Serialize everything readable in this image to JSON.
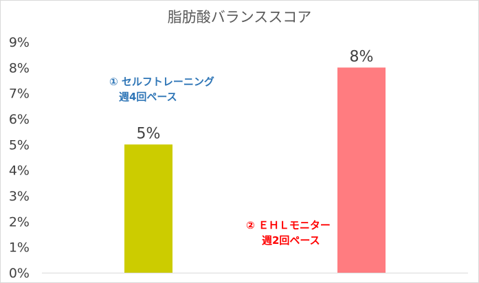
{
  "chart_data": {
    "type": "bar",
    "title": "脂肪酸バランススコア",
    "categories": [
      "",
      ""
    ],
    "values": [
      5,
      8
    ],
    "value_labels": [
      "5%",
      "8%"
    ],
    "bar_colors": [
      "#cccc00",
      "#ff7c80"
    ],
    "ylim": [
      0,
      9
    ],
    "yticks": [
      0,
      1,
      2,
      3,
      4,
      5,
      6,
      7,
      8,
      9
    ],
    "ytick_labels": [
      "0%",
      "1%",
      "2%",
      "3%",
      "4%",
      "5%",
      "6%",
      "7%",
      "8%",
      "9%"
    ],
    "xlabel": "",
    "ylabel": "",
    "grid": false,
    "annotations": [
      {
        "line1": "① セルフトレーニング",
        "line2": "週4回ペース",
        "color": "#2e75b6"
      },
      {
        "line1": "② ＥＨＬモニター",
        "line2": "週2回ペース",
        "color": "#ff0000"
      }
    ]
  }
}
